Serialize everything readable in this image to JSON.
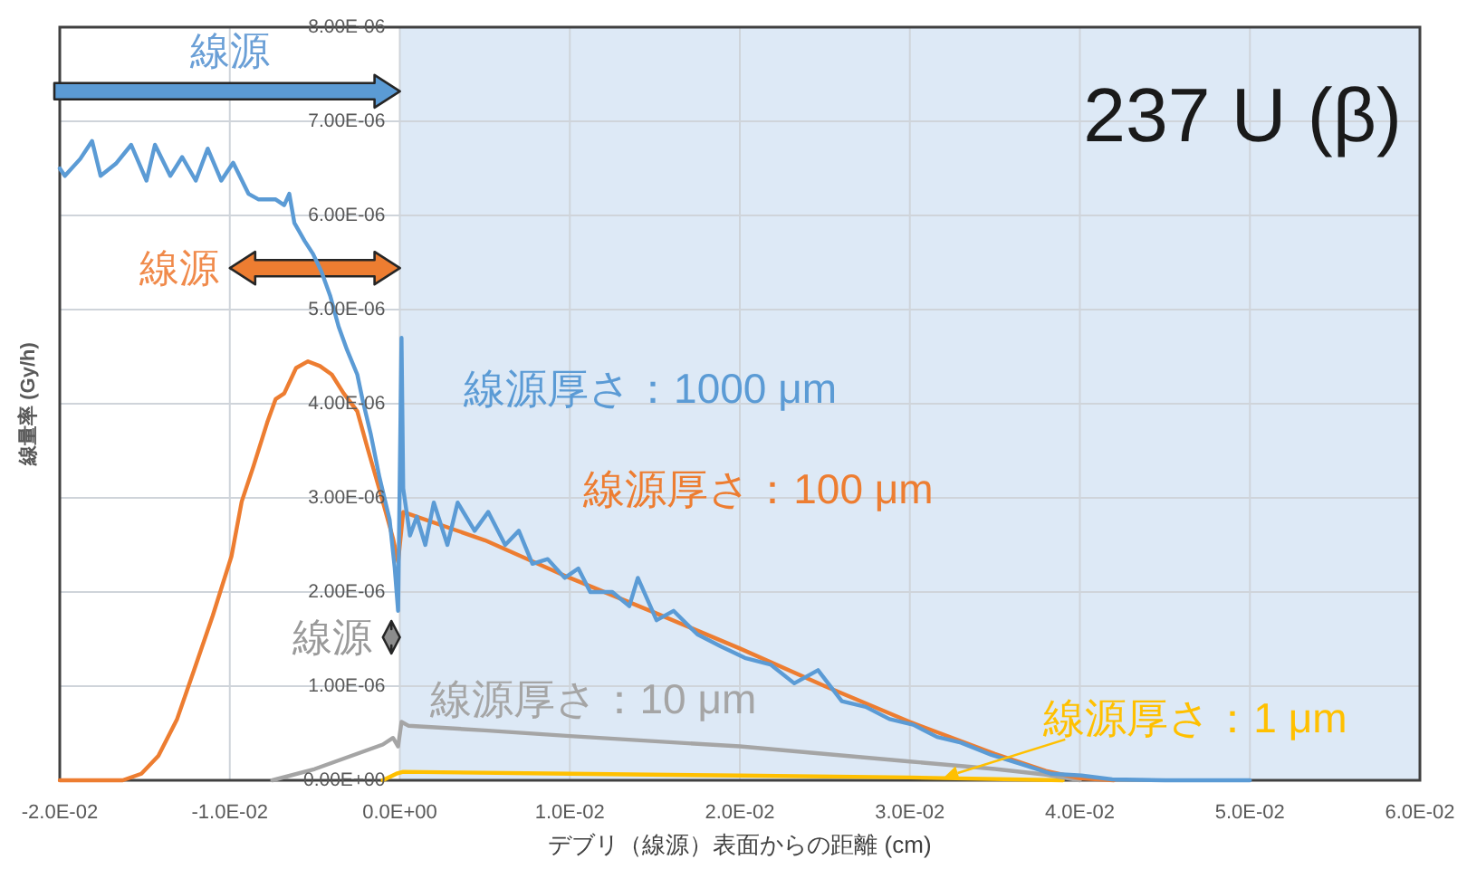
{
  "chart_data": {
    "type": "line",
    "title": "237 U (β)",
    "xlabel": "デブリ（線源）表面からの距離 (cm)",
    "ylabel": "線量率 (Gy/h)",
    "series": [
      {
        "name": "線源厚さ：1000 μm",
        "color": "#5b9bd5",
        "x": [
          -0.02,
          -0.0197,
          -0.0188,
          -0.0181,
          -0.0176,
          -0.0167,
          -0.0158,
          -0.0149,
          -0.0144,
          -0.0135,
          -0.0128,
          -0.012,
          -0.0113,
          -0.0105,
          -0.0098,
          -0.0089,
          -0.0083,
          -0.0073,
          -0.0068,
          -0.0065,
          -0.0062,
          -0.0056,
          -0.0051,
          -0.0046,
          -0.0041,
          -0.0036,
          -0.0031,
          -0.0025,
          -0.0022,
          -0.0017,
          -0.0012,
          -0.0006,
          -0.0003,
          -0.0001,
          0.0001,
          0.0002,
          0.0006,
          0.001,
          0.0015,
          0.002,
          0.0028,
          0.0034,
          0.0044,
          0.0052,
          0.0062,
          0.007,
          0.0078,
          0.0087,
          0.0097,
          0.0105,
          0.0112,
          0.0125,
          0.0135,
          0.014,
          0.0151,
          0.0161,
          0.0175,
          0.0189,
          0.0203,
          0.0218,
          0.0232,
          0.0246,
          0.026,
          0.0274,
          0.0288,
          0.0302,
          0.0316,
          0.033,
          0.0348,
          0.0366,
          0.0383,
          0.0401,
          0.0419,
          0.045,
          0.05
        ],
        "values": [
          6.5e-06,
          6.42e-06,
          6.6e-06,
          6.79e-06,
          6.42e-06,
          6.55e-06,
          6.75e-06,
          6.37e-06,
          6.75e-06,
          6.42e-06,
          6.62e-06,
          6.37e-06,
          6.71e-06,
          6.37e-06,
          6.56e-06,
          6.23e-06,
          6.17e-06,
          6.17e-06,
          6.11e-06,
          6.23e-06,
          5.92e-06,
          5.73e-06,
          5.59e-06,
          5.4e-06,
          5.15e-06,
          4.82e-06,
          4.57e-06,
          4.31e-06,
          4.05e-06,
          3.67e-06,
          3.22e-06,
          2.77e-06,
          2.26e-06,
          1.8e-06,
          4.7e-06,
          3.1e-06,
          2.6e-06,
          2.8e-06,
          2.5e-06,
          2.95e-06,
          2.5e-06,
          2.95e-06,
          2.65e-06,
          2.85e-06,
          2.5e-06,
          2.65e-06,
          2.3e-06,
          2.35e-06,
          2.15e-06,
          2.25e-06,
          2e-06,
          2e-06,
          1.85e-06,
          2.15e-06,
          1.7e-06,
          1.8e-06,
          1.55e-06,
          1.42e-06,
          1.3e-06,
          1.23e-06,
          1.03e-06,
          1.17e-06,
          8.4e-07,
          7.8e-07,
          6.5e-07,
          5.9e-07,
          4.6e-07,
          4e-07,
          2.7e-07,
          1.7e-07,
          7e-08,
          5e-08,
          1e-08,
          0,
          0
        ]
      },
      {
        "name": "線源厚さ：100 μm",
        "color": "#ed7d31",
        "x": [
          -0.02,
          -0.0163,
          -0.0152,
          -0.0142,
          -0.0131,
          -0.0121,
          -0.011,
          -0.0099,
          -0.0093,
          -0.0086,
          -0.0078,
          -0.0073,
          -0.0068,
          -0.0061,
          -0.0054,
          -0.0047,
          -0.004,
          -0.0033,
          -0.0025,
          -0.0019,
          -0.0012,
          -0.0004,
          -0.0001,
          0.0002,
          0.005,
          0.01,
          0.015,
          0.02,
          0.025,
          0.03,
          0.035,
          0.038,
          0.04,
          0.042
        ],
        "values": [
          0,
          0,
          7e-08,
          2.6e-07,
          6.5e-07,
          1.17e-06,
          1.75e-06,
          2.38e-06,
          2.96e-06,
          3.34e-06,
          3.8e-06,
          4.05e-06,
          4.11e-06,
          4.38e-06,
          4.45e-06,
          4.4e-06,
          4.31e-06,
          4.11e-06,
          3.92e-06,
          3.53e-06,
          3.09e-06,
          2.57e-06,
          2.32e-06,
          2.85e-06,
          2.55e-06,
          2.15e-06,
          1.78e-06,
          1.4e-06,
          1e-06,
          6.2e-07,
          2.8e-07,
          1e-07,
          2e-08,
          0
        ]
      },
      {
        "name": "線源厚さ：10 μm",
        "color": "#a5a5a5",
        "x": [
          -0.0075,
          -0.005,
          -0.003,
          -0.001,
          -0.0004,
          -0.0001,
          0.0001,
          0.0005,
          0.005,
          0.01,
          0.02,
          0.03,
          0.035,
          0.038,
          0.04
        ],
        "values": [
          0,
          1.2e-07,
          2.5e-07,
          3.8e-07,
          4.5e-07,
          3.6e-07,
          6.2e-07,
          5.8e-07,
          5.3e-07,
          4.7e-07,
          3.6e-07,
          2e-07,
          1.2e-07,
          6e-08,
          0
        ]
      },
      {
        "color": "#ffc000",
        "x": [
          -0.001,
          -0.0002,
          0.0002,
          0.01,
          0.02,
          0.03,
          0.039
        ],
        "values": [
          0,
          7e-08,
          9e-08,
          7e-08,
          5e-08,
          3e-08,
          0
        ]
      }
    ],
    "xlim": [
      -0.02,
      0.06
    ],
    "xticks": [
      {
        "value": -0.02,
        "label": "-2.0E-02"
      },
      {
        "value": -0.01,
        "label": "-1.0E-02"
      },
      {
        "value": 0,
        "label": "0.0E+00"
      },
      {
        "value": 0.01,
        "label": "1.0E-02"
      },
      {
        "value": 0.02,
        "label": "2.0E-02"
      },
      {
        "value": 0.03,
        "label": "3.0E-02"
      },
      {
        "value": 0.04,
        "label": "4.0E-02"
      },
      {
        "value": 0.05,
        "label": "5.0E-02"
      },
      {
        "value": 0.06,
        "label": "6.0E-02"
      }
    ],
    "ylim": [
      0,
      8e-06
    ],
    "yticks": [
      {
        "value": 0,
        "label": "0.00E+00"
      },
      {
        "value": 1e-06,
        "label": "1.00E-06"
      },
      {
        "value": 2e-06,
        "label": "2.00E-06"
      },
      {
        "value": 3e-06,
        "label": "3.00E-06"
      },
      {
        "value": 4e-06,
        "label": "4.00E-06"
      },
      {
        "value": 5e-06,
        "label": "5.00E-06"
      },
      {
        "value": 6e-06,
        "label": "6.00E-06"
      },
      {
        "value": 7e-06,
        "label": "7.00E-06"
      },
      {
        "value": 8e-06,
        "label": "8.00E-06"
      }
    ],
    "grid": true,
    "bands": [
      {
        "axis": "x",
        "from": 0,
        "to": 0.06,
        "color": "#dde9f6"
      }
    ],
    "annotations": [
      "線源",
      "線源",
      "線源",
      {
        "text": "線源厚さ：1 μm",
        "x": 0.032,
        "y": 3e-08
      }
    ]
  }
}
